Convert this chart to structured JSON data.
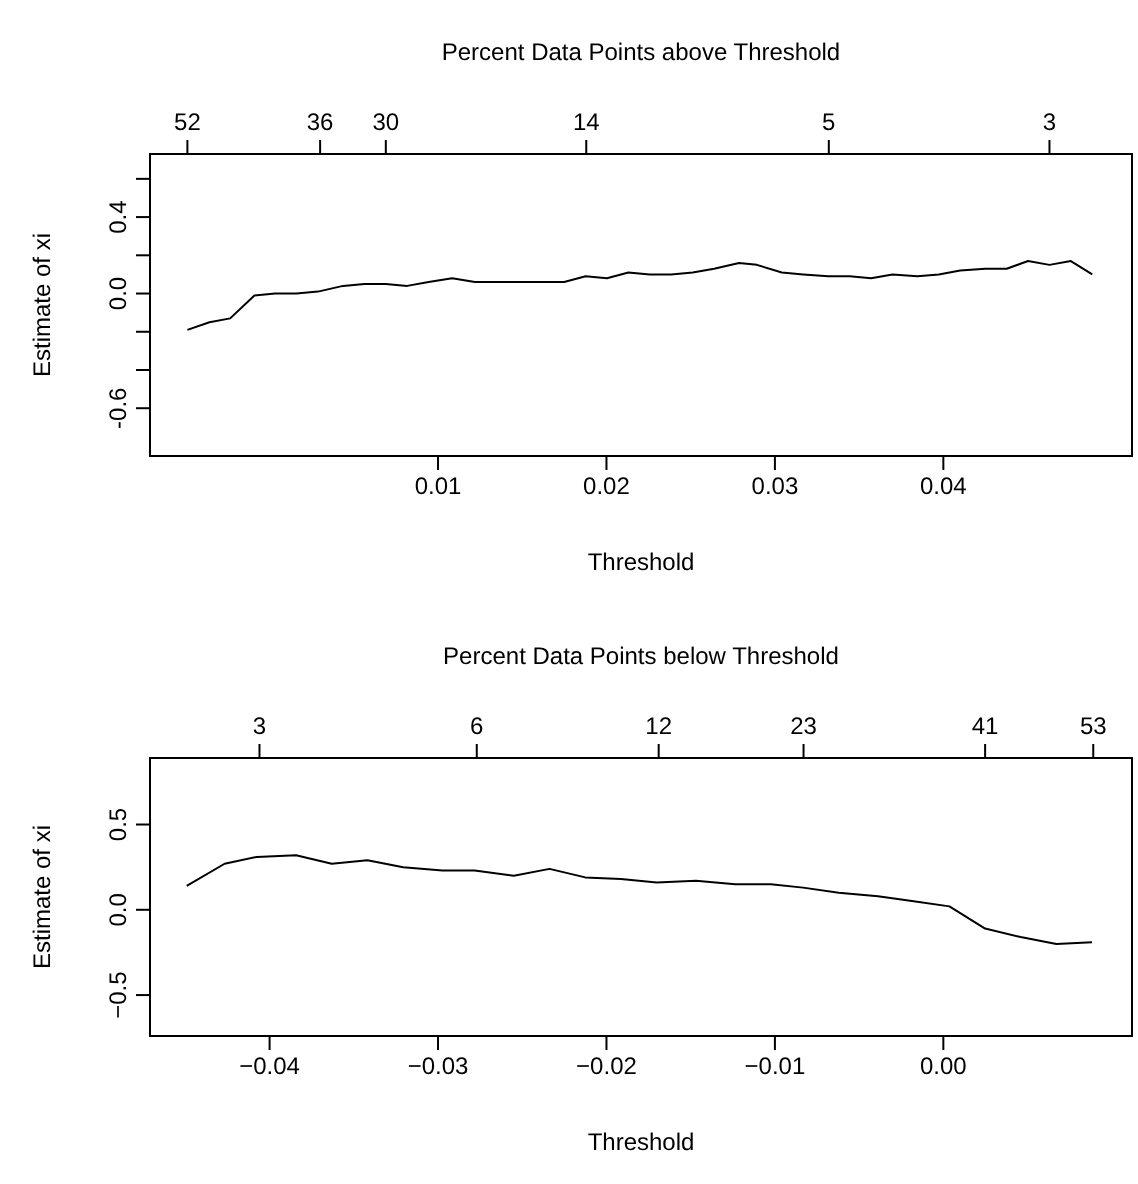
{
  "chart_data": [
    {
      "type": "line",
      "x2label": "Percent Data Points above Threshold",
      "xlabel": "Threshold",
      "ylabel": "Estimate of xi",
      "x": [
        -0.00488,
        -0.00357,
        -0.00234,
        -0.0009,
        0.00033,
        0.0016,
        0.00287,
        0.00436,
        0.00563,
        0.0069,
        0.00817,
        0.00944,
        0.01084,
        0.01219,
        0.01347,
        0.01474,
        0.01622,
        0.01749,
        0.01876,
        0.02003,
        0.0213,
        0.02257,
        0.02384,
        0.02512,
        0.02639,
        0.02787,
        0.02893,
        0.03041,
        0.03168,
        0.03317,
        0.03444,
        0.03571,
        0.03698,
        0.03846,
        0.03973,
        0.041,
        0.04249,
        0.04376,
        0.04503,
        0.0463,
        0.04757,
        0.04884
      ],
      "series": [
        {
          "color": "#000000",
          "values": [
            -0.19,
            -0.15,
            -0.13,
            -0.01,
            0.0,
            0.0,
            0.01,
            0.04,
            0.05,
            0.05,
            0.04,
            0.06,
            0.08,
            0.06,
            0.06,
            0.06,
            0.06,
            0.06,
            0.09,
            0.08,
            0.11,
            0.1,
            0.1,
            0.11,
            0.13,
            0.16,
            0.15,
            0.11,
            0.1,
            0.09,
            0.09,
            0.08,
            0.1,
            0.09,
            0.1,
            0.12,
            0.13,
            0.13,
            0.17,
            0.15,
            0.17,
            0.1
          ]
        }
      ],
      "xlim": [
        -0.0071,
        0.0512
      ],
      "xticks": [
        0.01,
        0.02,
        0.03,
        0.04
      ],
      "ylim": [
        -0.85,
        0.73
      ],
      "yticks": [
        {
          "value": -0.6,
          "label": "-0.6"
        },
        {
          "value": -0.4,
          "label": null
        },
        {
          "value": -0.2,
          "label": null
        },
        {
          "value": 0,
          "label": "0.0"
        },
        {
          "value": 0.2,
          "label": null
        },
        {
          "value": 0.4,
          "label": "0.4"
        },
        {
          "value": 0.6,
          "label": null
        }
      ],
      "annotations": [
        {
          "text": "52",
          "x": -0.00488
        },
        {
          "text": "36",
          "x": 0.003
        },
        {
          "text": "30",
          "x": 0.0069
        },
        {
          "text": "14",
          "x": 0.0188
        },
        {
          "text": "5",
          "x": 0.0332
        },
        {
          "text": "3",
          "x": 0.0463
        }
      ]
    },
    {
      "type": "line",
      "x2label": "Percent Data Points below Threshold",
      "xlabel": "Threshold",
      "ylabel": "Estimate of xi",
      "x": [
        -0.04492,
        -0.04267,
        -0.04076,
        -0.03843,
        -0.03631,
        -0.03419,
        -0.03207,
        -0.02974,
        -0.02783,
        -0.0255,
        -0.02338,
        -0.02126,
        -0.01914,
        -0.01702,
        -0.01469,
        -0.01236,
        -0.01024,
        -0.00833,
        -0.00621,
        -0.00388,
        -0.00176,
        0.00036,
        0.00248,
        0.00459,
        0.00671,
        0.00883
      ],
      "series": [
        {
          "color": "#000000",
          "values": [
            0.14,
            0.27,
            0.31,
            0.32,
            0.27,
            0.29,
            0.25,
            0.23,
            0.23,
            0.2,
            0.24,
            0.19,
            0.18,
            0.16,
            0.17,
            0.15,
            0.15,
            0.13,
            0.1,
            0.08,
            0.05,
            0.02,
            -0.11,
            -0.16,
            -0.2,
            -0.19
          ]
        }
      ],
      "xlim": [
        -0.0471,
        0.0112
      ],
      "xticks": [
        {
          "value": -0.04,
          "label": "−0.04"
        },
        {
          "value": -0.03,
          "label": "−0.03"
        },
        {
          "value": -0.02,
          "label": "−0.02"
        },
        {
          "value": -0.01,
          "label": "−0.01"
        },
        {
          "value": 0,
          "label": "0.00"
        }
      ],
      "ylim": [
        -0.74,
        0.89
      ],
      "yticks": [
        {
          "value": -0.5,
          "label": "−0.5"
        },
        {
          "value": 0,
          "label": "0.0"
        },
        {
          "value": 0.5,
          "label": "0.5"
        }
      ],
      "annotations": [
        {
          "text": "3",
          "x": -0.0406
        },
        {
          "text": "6",
          "x": -0.0277
        },
        {
          "text": "12",
          "x": -0.0169
        },
        {
          "text": "23",
          "x": -0.0083
        },
        {
          "text": "41",
          "x": 0.00248
        },
        {
          "text": "53",
          "x": 0.0089
        }
      ]
    }
  ]
}
